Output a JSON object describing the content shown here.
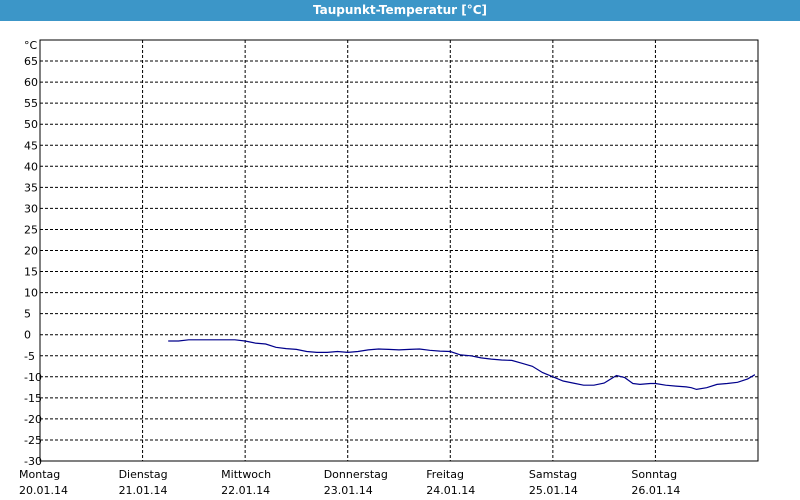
{
  "window": {
    "title": "Taupunkt-Temperatur [°C]"
  },
  "chart_data": {
    "type": "line",
    "title": "Taupunkt-Temperatur [°C]",
    "ylabel": "°C",
    "ylim": [
      -30,
      70
    ],
    "xlim": [
      0,
      7
    ],
    "yticks": [
      65,
      60,
      55,
      50,
      45,
      40,
      35,
      30,
      25,
      20,
      15,
      10,
      5,
      0,
      -5,
      -10,
      -15,
      -20,
      -25,
      -30
    ],
    "grid": true,
    "x_categories": [
      {
        "day": "Montag",
        "date": "20.01.14"
      },
      {
        "day": "Dienstag",
        "date": "21.01.14"
      },
      {
        "day": "Mittwoch",
        "date": "22.01.14"
      },
      {
        "day": "Donnerstag",
        "date": "23.01.14"
      },
      {
        "day": "Freitag",
        "date": "24.01.14"
      },
      {
        "day": "Samstag",
        "date": "25.01.14"
      },
      {
        "day": "Sonntag",
        "date": "26.01.14"
      }
    ],
    "line_color": "#00008b",
    "series": [
      {
        "x": [
          1.25,
          1.35,
          1.45,
          1.6,
          1.75,
          1.9,
          2.0,
          2.1,
          2.2,
          2.3,
          2.4,
          2.5,
          2.6,
          2.7,
          2.8,
          2.9,
          3.0,
          3.1,
          3.2,
          3.3,
          3.4,
          3.5,
          3.6,
          3.7,
          3.8,
          3.9,
          4.0,
          4.1,
          4.2,
          4.3,
          4.4,
          4.5,
          4.6,
          4.7,
          4.8,
          4.9,
          5.0,
          5.1,
          5.2,
          5.3,
          5.4,
          5.5,
          5.6,
          5.62,
          5.7,
          5.78,
          5.85,
          5.95,
          6.0,
          6.1,
          6.2,
          6.3,
          6.35,
          6.4,
          6.5,
          6.6,
          6.7,
          6.8,
          6.9,
          6.97
        ],
        "y": [
          -1.5,
          -1.5,
          -1.2,
          -1.2,
          -1.2,
          -1.2,
          -1.5,
          -2.0,
          -2.2,
          -3.0,
          -3.3,
          -3.5,
          -4.0,
          -4.2,
          -4.2,
          -4.0,
          -4.2,
          -4.0,
          -3.6,
          -3.4,
          -3.5,
          -3.6,
          -3.5,
          -3.4,
          -3.7,
          -3.9,
          -4.0,
          -4.8,
          -5.0,
          -5.5,
          -5.8,
          -6.0,
          -6.1,
          -6.8,
          -7.5,
          -9.0,
          -10.0,
          -11.0,
          -11.5,
          -12.0,
          -12.0,
          -11.5,
          -10.0,
          -9.7,
          -10.2,
          -11.6,
          -11.8,
          -11.6,
          -11.6,
          -12.0,
          -12.2,
          -12.4,
          -12.6,
          -13.0,
          -12.6,
          -11.8,
          -11.6,
          -11.3,
          -10.5,
          -9.5
        ]
      }
    ]
  }
}
